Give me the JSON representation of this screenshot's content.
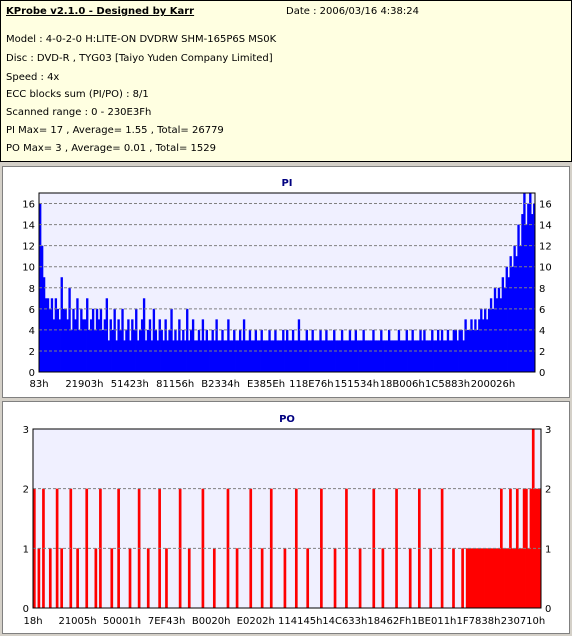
{
  "header": {
    "title": "KProbe v2.1.0 - Designed by Karr",
    "date": "Date : 2006/03/16 4:38:24",
    "lines": [
      "Model : 4-0-2-0 H:LITE-ON DVDRW SHM-165P6S MS0K",
      "Disc : DVD-R , TYG03 [Taiyo Yuden Company Limited]",
      "Speed : 4x",
      "ECC blocks sum (PI/PO) : 8/1",
      "Scanned range : 0 - 230E3Fh",
      "PI Max= 17 , Average= 1.55 , Total= 26779",
      "PO Max= 3 , Average= 0.01 , Total= 1529"
    ]
  },
  "colors": {
    "pi_bars": "#0000ff",
    "po_bars": "#ff0000",
    "plot_bg": "#f0f0ff"
  },
  "chart_data": [
    {
      "type": "bar",
      "title": "PI",
      "ylim": [
        0,
        17
      ],
      "yticks": [
        0,
        2,
        4,
        6,
        8,
        10,
        12,
        14,
        16
      ],
      "xticklabels": [
        "83h",
        "21903h",
        "51423h",
        "81156h",
        "B2334h",
        "E385Eh",
        "118E76h",
        "151534h",
        "18B006h",
        "1C5883h",
        "200026h"
      ],
      "grid": true,
      "series": [
        {
          "values": [
            16,
            12,
            9,
            7,
            7,
            6,
            7,
            5,
            7,
            6,
            5,
            9,
            6,
            6,
            5,
            8,
            4,
            6,
            5,
            7,
            4,
            6,
            5,
            5,
            7,
            4,
            5,
            6,
            4,
            6,
            5,
            6,
            4,
            5,
            7,
            3,
            5,
            4,
            6,
            3,
            5,
            4,
            6,
            3,
            4,
            5,
            3,
            5,
            4,
            6,
            3,
            4,
            5,
            7,
            3,
            4,
            5,
            3,
            6,
            4,
            3,
            5,
            4,
            3,
            5,
            3,
            4,
            6,
            3,
            4,
            3,
            5,
            3,
            4,
            3,
            6,
            3,
            4,
            5,
            3,
            3,
            4,
            3,
            5,
            3,
            4,
            3,
            3,
            4,
            3,
            5,
            3,
            3,
            4,
            3,
            3,
            5,
            3,
            3,
            4,
            3,
            3,
            4,
            3,
            5,
            3,
            3,
            4,
            3,
            3,
            4,
            3,
            3,
            4,
            3,
            3,
            3,
            4,
            3,
            3,
            4,
            3,
            3,
            3,
            4,
            3,
            4,
            3,
            3,
            4,
            3,
            3,
            5,
            3,
            3,
            3,
            4,
            3,
            3,
            4,
            3,
            3,
            3,
            4,
            3,
            3,
            4,
            3,
            3,
            3,
            4,
            3,
            3,
            3,
            4,
            3,
            3,
            3,
            4,
            3,
            3,
            4,
            3,
            3,
            3,
            4,
            3,
            3,
            3,
            3,
            4,
            3,
            3,
            3,
            4,
            3,
            3,
            3,
            4,
            3,
            3,
            3,
            3,
            4,
            3,
            3,
            3,
            4,
            3,
            3,
            4,
            3,
            3,
            3,
            4,
            3,
            4,
            3,
            3,
            3,
            4,
            3,
            3,
            4,
            3,
            4,
            3,
            3,
            4,
            3,
            3,
            4,
            4,
            3,
            4,
            4,
            3,
            5,
            4,
            4,
            5,
            4,
            5,
            4,
            5,
            6,
            5,
            6,
            5,
            6,
            7,
            6,
            8,
            7,
            8,
            7,
            9,
            8,
            10,
            9,
            11,
            10,
            12,
            11,
            14,
            12,
            15,
            17,
            14,
            16,
            17,
            15,
            16
          ]
        }
      ]
    },
    {
      "type": "bar",
      "title": "PO",
      "ylim": [
        0,
        3
      ],
      "yticks": [
        0,
        1,
        2,
        3
      ],
      "xticklabels": [
        "18h",
        "21005h",
        "50001h",
        "7EF43h",
        "B0020h",
        "E0202h",
        "114145h",
        "14C633h",
        "18462Fh",
        "1BE011h",
        "1F7838h",
        "230710h"
      ],
      "grid": true,
      "series": [
        {
          "values": [
            2,
            0,
            1,
            0,
            2,
            0,
            0,
            1,
            0,
            0,
            2,
            0,
            1,
            0,
            0,
            0,
            2,
            0,
            0,
            1,
            0,
            0,
            0,
            2,
            0,
            0,
            0,
            1,
            0,
            2,
            0,
            0,
            0,
            0,
            1,
            0,
            0,
            2,
            0,
            0,
            0,
            0,
            1,
            0,
            0,
            0,
            2,
            0,
            0,
            0,
            1,
            0,
            0,
            0,
            0,
            2,
            0,
            0,
            1,
            0,
            0,
            0,
            0,
            0,
            2,
            0,
            0,
            0,
            1,
            0,
            0,
            0,
            0,
            0,
            2,
            0,
            0,
            0,
            0,
            1,
            0,
            0,
            0,
            0,
            0,
            2,
            0,
            0,
            0,
            1,
            0,
            0,
            0,
            0,
            0,
            2,
            0,
            0,
            0,
            0,
            1,
            0,
            0,
            0,
            2,
            0,
            0,
            0,
            0,
            0,
            1,
            0,
            0,
            0,
            0,
            2,
            0,
            0,
            0,
            0,
            1,
            0,
            0,
            0,
            0,
            0,
            2,
            0,
            0,
            0,
            0,
            0,
            1,
            0,
            0,
            0,
            0,
            2,
            0,
            0,
            0,
            0,
            0,
            1,
            0,
            0,
            0,
            0,
            0,
            2,
            0,
            0,
            0,
            1,
            0,
            0,
            0,
            0,
            0,
            2,
            0,
            0,
            0,
            0,
            0,
            1,
            0,
            0,
            0,
            2,
            0,
            0,
            0,
            0,
            1,
            0,
            0,
            0,
            0,
            2,
            0,
            0,
            0,
            0,
            1,
            0,
            0,
            0,
            1,
            0,
            1,
            1,
            1,
            1,
            1,
            1,
            1,
            1,
            1,
            1,
            1,
            1,
            1,
            1,
            1,
            2,
            1,
            1,
            1,
            2,
            1,
            1,
            2,
            1,
            1,
            2,
            2,
            1,
            2,
            3,
            2,
            2,
            2
          ]
        }
      ]
    }
  ]
}
